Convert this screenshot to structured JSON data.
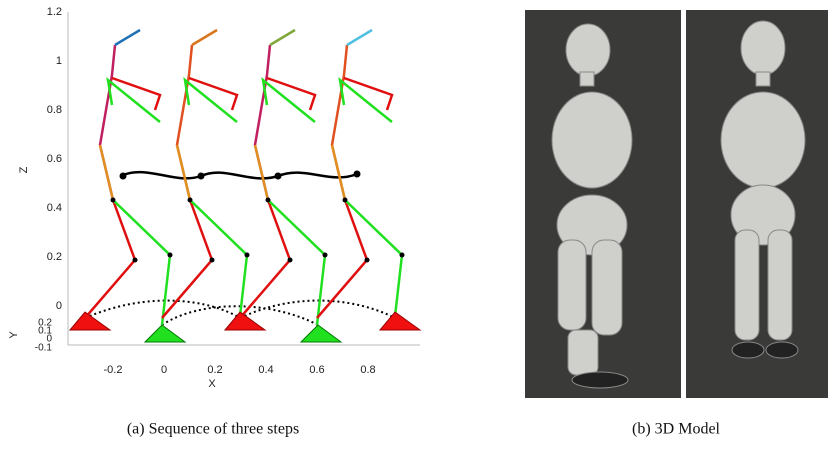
{
  "figure": {
    "subfigures": [
      {
        "caption": "(a) Sequence of three steps",
        "plot": {
          "z_label": "Z",
          "x_label": "X",
          "y_label": "Y",
          "zticks": [
            "0",
            "0.2",
            "0.4",
            "0.6",
            "0.8",
            "1",
            "1.2"
          ],
          "xticks": [
            "-0.2",
            "0",
            "0.2",
            "0.4",
            "0.6",
            "0.8"
          ],
          "yticks": [
            "0.2",
            "0.1",
            "0",
            "-0.1"
          ]
        }
      },
      {
        "caption": "(b) 3D Model"
      }
    ]
  }
}
